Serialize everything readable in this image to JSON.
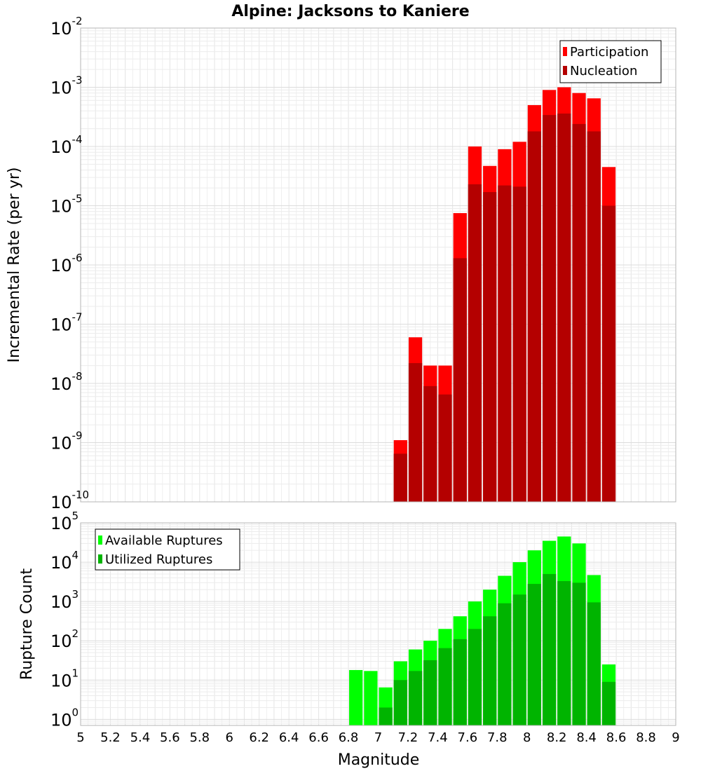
{
  "title": "Alpine: Jacksons to Kaniere",
  "xlabel": "Magnitude",
  "chart_data": [
    {
      "type": "bar",
      "ylabel": "Incremental Rate (per yr)",
      "yscale": "log",
      "ylim": [
        1e-10,
        0.01
      ],
      "xlim": [
        5,
        9
      ],
      "x": [
        7.15,
        7.25,
        7.35,
        7.45,
        7.55,
        7.65,
        7.75,
        7.85,
        7.95,
        8.05,
        8.15,
        8.25,
        8.35,
        8.45,
        8.55
      ],
      "legend_position": "top-right",
      "series": [
        {
          "name": "Participation",
          "color": "#ff0000",
          "values": [
            1.1e-09,
            6e-08,
            2e-08,
            2e-08,
            7.5e-06,
            0.0001,
            4.7e-05,
            9e-05,
            0.00012,
            0.0005,
            0.0009,
            0.001,
            0.0008,
            0.00065,
            4.5e-05
          ]
        },
        {
          "name": "Nucleation",
          "color": "#b40000",
          "values": [
            6.5e-10,
            2.2e-08,
            9e-09,
            6.5e-09,
            1.3e-06,
            2.3e-05,
            1.7e-05,
            2.2e-05,
            2.1e-05,
            0.00018,
            0.00034,
            0.00036,
            0.00024,
            0.00018,
            1e-05
          ]
        }
      ]
    },
    {
      "type": "bar",
      "ylabel": "Rupture Count",
      "yscale": "log",
      "ylim": [
        0.7,
        100000
      ],
      "xlim": [
        5,
        9
      ],
      "x": [
        6.85,
        6.95,
        7.05,
        7.15,
        7.25,
        7.35,
        7.45,
        7.55,
        7.65,
        7.75,
        7.85,
        7.95,
        8.05,
        8.15,
        8.25,
        8.35,
        8.45,
        8.55
      ],
      "legend_position": "top-left",
      "series": [
        {
          "name": "Available Ruptures",
          "color": "#00ff00",
          "values": [
            18,
            17,
            6.5,
            30,
            60,
            100,
            200,
            420,
            1000,
            2000,
            4500,
            10000,
            20000,
            35000,
            45000,
            30000,
            4700,
            25
          ]
        },
        {
          "name": "Utilized Ruptures",
          "color": "#00b400",
          "values": [
            0,
            0,
            2,
            10,
            17,
            32,
            65,
            110,
            200,
            420,
            900,
            1500,
            2800,
            5000,
            3300,
            3000,
            950,
            9
          ]
        }
      ]
    }
  ],
  "x_ticks": [
    "5",
    "5.2",
    "5.4",
    "5.6",
    "5.8",
    "6",
    "6.2",
    "6.4",
    "6.6",
    "6.8",
    "7",
    "7.2",
    "7.4",
    "7.6",
    "7.8",
    "8",
    "8.2",
    "8.4",
    "8.6",
    "8.8",
    "9"
  ],
  "top_y_ticks": [
    {
      "base": "10",
      "exp": "-10"
    },
    {
      "base": "10",
      "exp": "-9"
    },
    {
      "base": "10",
      "exp": "-8"
    },
    {
      "base": "10",
      "exp": "-7"
    },
    {
      "base": "10",
      "exp": "-6"
    },
    {
      "base": "10",
      "exp": "-5"
    },
    {
      "base": "10",
      "exp": "-4"
    },
    {
      "base": "10",
      "exp": "-3"
    },
    {
      "base": "10",
      "exp": "-2"
    }
  ],
  "bottom_y_ticks": [
    {
      "base": "10",
      "exp": "0"
    },
    {
      "base": "10",
      "exp": "1"
    },
    {
      "base": "10",
      "exp": "2"
    },
    {
      "base": "10",
      "exp": "3"
    },
    {
      "base": "10",
      "exp": "4"
    },
    {
      "base": "10",
      "exp": "5"
    }
  ]
}
